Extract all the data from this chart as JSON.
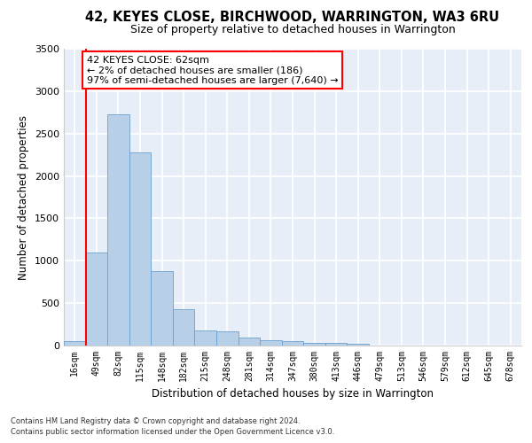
{
  "title": "42, KEYES CLOSE, BIRCHWOOD, WARRINGTON, WA3 6RU",
  "subtitle": "Size of property relative to detached houses in Warrington",
  "xlabel": "Distribution of detached houses by size in Warrington",
  "ylabel": "Number of detached properties",
  "bar_labels": [
    "16sqm",
    "49sqm",
    "82sqm",
    "115sqm",
    "148sqm",
    "182sqm",
    "215sqm",
    "248sqm",
    "281sqm",
    "314sqm",
    "347sqm",
    "380sqm",
    "413sqm",
    "446sqm",
    "479sqm",
    "513sqm",
    "546sqm",
    "579sqm",
    "612sqm",
    "645sqm",
    "678sqm"
  ],
  "bar_values": [
    55,
    1100,
    2730,
    2280,
    880,
    425,
    175,
    165,
    90,
    65,
    55,
    30,
    28,
    25,
    0,
    0,
    0,
    0,
    0,
    0,
    0
  ],
  "bar_color": "#b8cfe8",
  "bar_edge_color": "#6aa0cc",
  "vline_color": "red",
  "vline_x": 0.5,
  "annotation_line1": "42 KEYES CLOSE: 62sqm",
  "annotation_line2": "← 2% of detached houses are smaller (186)",
  "annotation_line3": "97% of semi-detached houses are larger (7,640) →",
  "annotation_box_facecolor": "white",
  "annotation_box_edgecolor": "red",
  "ylim": [
    0,
    3500
  ],
  "yticks": [
    0,
    500,
    1000,
    1500,
    2000,
    2500,
    3000,
    3500
  ],
  "background_color": "#e8eef8",
  "grid_color": "white",
  "footer_line1": "Contains HM Land Registry data © Crown copyright and database right 2024.",
  "footer_line2": "Contains public sector information licensed under the Open Government Licence v3.0."
}
